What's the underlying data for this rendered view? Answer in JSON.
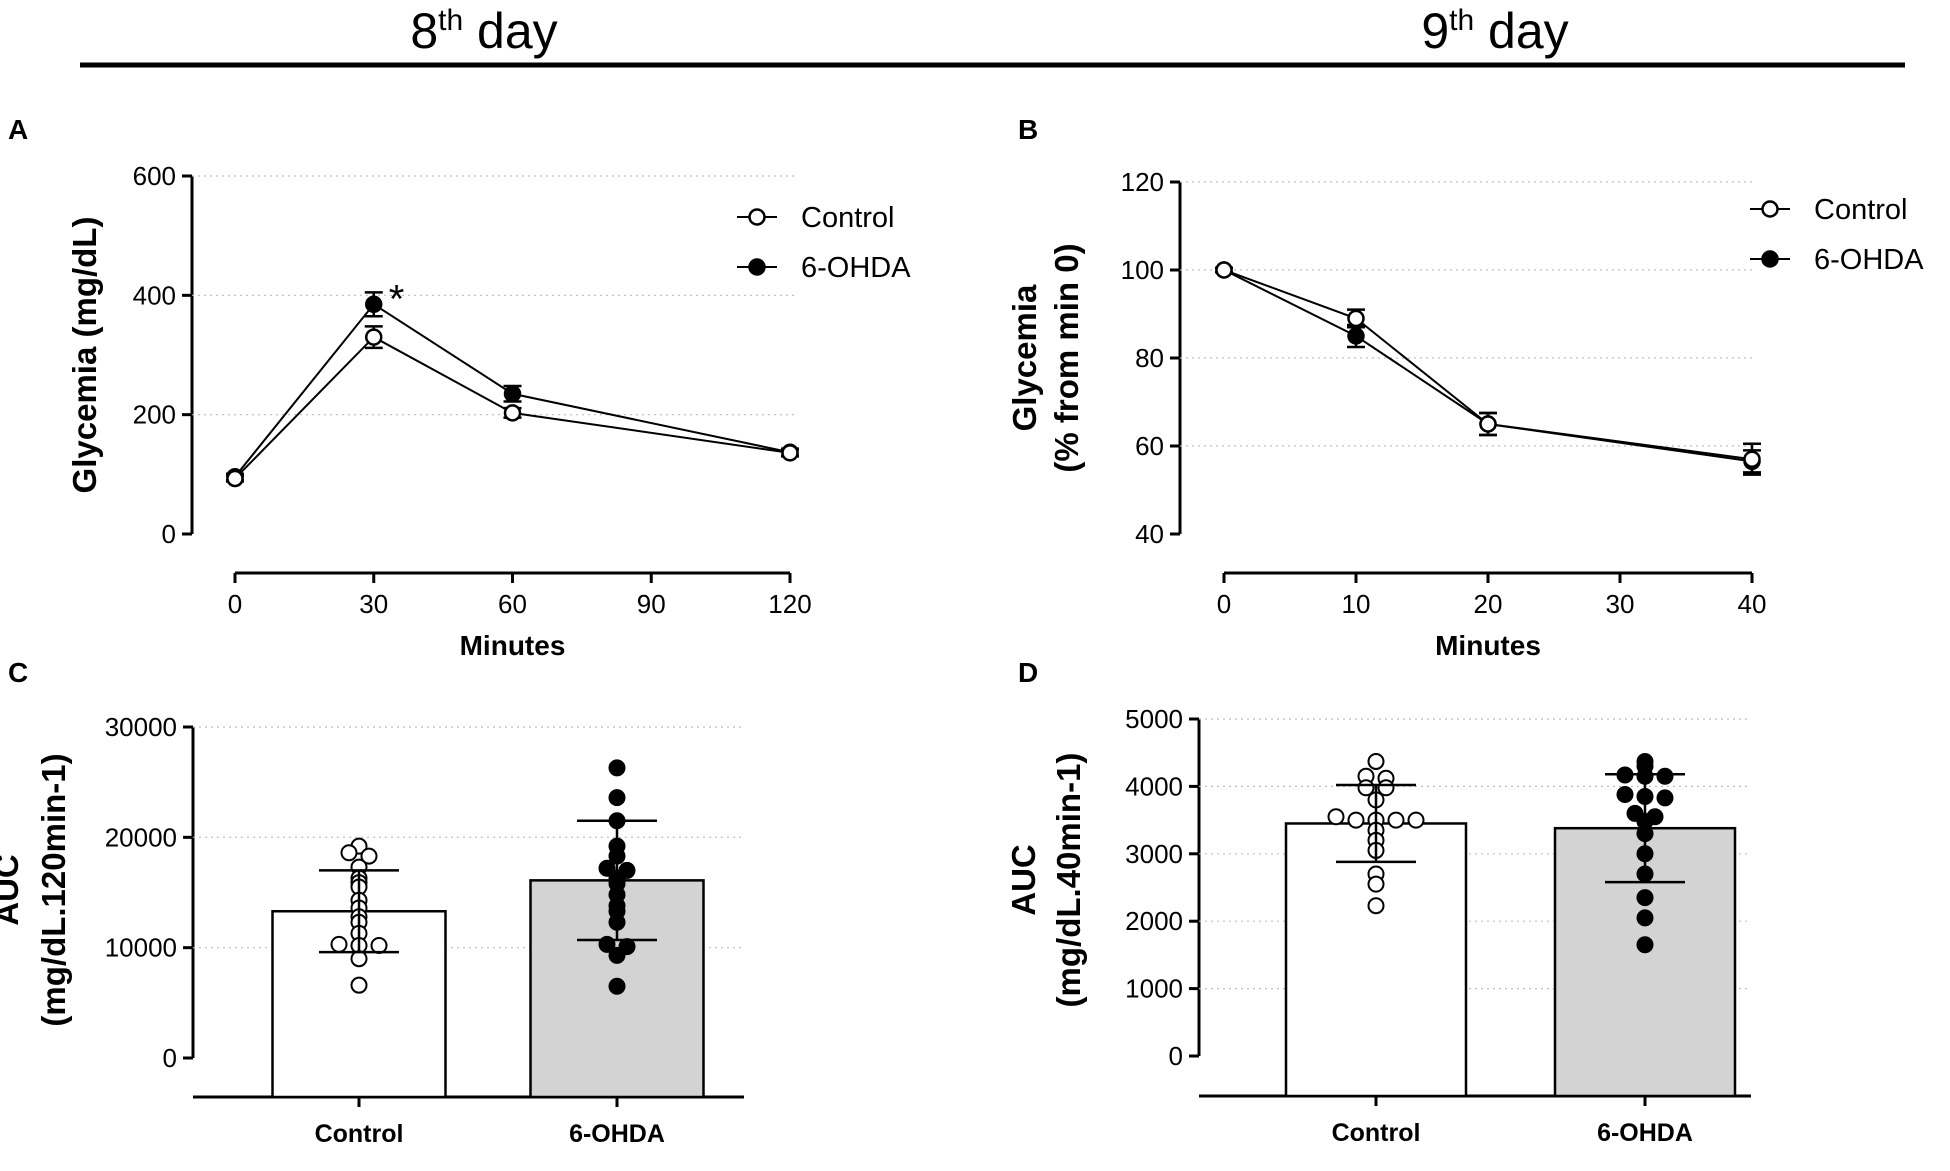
{
  "figure": {
    "header_left": {
      "main": "8",
      "sup": "th",
      "rest": " day"
    },
    "header_right": {
      "main": "9",
      "sup": "th",
      "rest": " day"
    }
  },
  "chart_data": [
    {
      "panel": "A",
      "type": "line",
      "title": "",
      "xlabel": "Minutes",
      "ylabel": "Glycemia (mg/dL)",
      "x": [
        0,
        30,
        60,
        120
      ],
      "xticks": [
        0,
        30,
        60,
        90,
        120
      ],
      "yticks": [
        0,
        200,
        400,
        600
      ],
      "xlim": [
        0,
        120
      ],
      "ylim": [
        0,
        600
      ],
      "grid": true,
      "legend_position": "top-right",
      "series": [
        {
          "name": "Control",
          "marker": "open-circle",
          "values": [
            93,
            330,
            203,
            136
          ],
          "errors": [
            5,
            18,
            8,
            6
          ]
        },
        {
          "name": "6-OHDA",
          "marker": "filled-circle",
          "values": [
            96,
            385,
            235,
            137
          ],
          "errors": [
            5,
            20,
            13,
            6
          ]
        }
      ],
      "annotations": [
        {
          "text": "*",
          "x": 30,
          "series": "6-OHDA"
        }
      ]
    },
    {
      "panel": "B",
      "type": "line",
      "title": "",
      "xlabel": "Minutes",
      "ylabel": [
        "Glycemia",
        "(% from min 0)"
      ],
      "x": [
        0,
        10,
        20,
        40
      ],
      "xticks": [
        0,
        10,
        20,
        30,
        40
      ],
      "yticks": [
        40,
        60,
        80,
        100,
        120
      ],
      "xlim": [
        0,
        40
      ],
      "ylim": [
        40,
        120
      ],
      "grid": true,
      "legend_position": "top-right",
      "series": [
        {
          "name": "Control",
          "marker": "open-circle",
          "values": [
            100,
            89,
            65,
            57
          ],
          "errors": [
            0.5,
            2,
            2.5,
            3.5
          ]
        },
        {
          "name": "6-OHDA",
          "marker": "filled-circle",
          "values": [
            100,
            85,
            65,
            56.5
          ],
          "errors": [
            0.5,
            2.5,
            2.5,
            2.5
          ]
        }
      ]
    },
    {
      "panel": "C",
      "type": "bar",
      "title": "",
      "xlabel": "",
      "ylabel": [
        "AUC",
        "(mg/dL.120min-1)"
      ],
      "categories": [
        "Control",
        "6-OHDA"
      ],
      "values": [
        13300,
        16100
      ],
      "sd": [
        3700,
        5400
      ],
      "yticks": [
        0,
        10000,
        20000,
        30000
      ],
      "ylim": [
        0,
        30000
      ],
      "grid": true,
      "bar_fills": [
        "#ffffff",
        "#d3d3d3"
      ],
      "points": [
        [
          19200,
          18600,
          18300,
          17300,
          16300,
          15900,
          15500,
          14300,
          13600,
          12800,
          12300,
          11300,
          10300,
          10200,
          10200,
          9000,
          6600
        ],
        [
          26300,
          23600,
          21500,
          19200,
          18300,
          17200,
          17000,
          16300,
          15800,
          14800,
          13800,
          13300,
          12300,
          10300,
          10100,
          9300,
          6500
        ]
      ]
    },
    {
      "panel": "D",
      "type": "bar",
      "title": "",
      "xlabel": "",
      "ylabel": [
        "AUC",
        "(mg/dL.40min-1)"
      ],
      "categories": [
        "Control",
        "6-OHDA"
      ],
      "values": [
        3450,
        3380
      ],
      "sd": [
        570,
        800
      ],
      "yticks": [
        0,
        1000,
        2000,
        3000,
        4000,
        5000
      ],
      "ylim": [
        0,
        5000
      ],
      "grid": true,
      "bar_fills": [
        "#ffffff",
        "#d3d3d3"
      ],
      "points": [
        [
          4370,
          4150,
          4120,
          3980,
          3980,
          3800,
          3550,
          3500,
          3500,
          3500,
          3500,
          3350,
          3200,
          3050,
          2700,
          2550,
          2230
        ],
        [
          4370,
          4300,
          4170,
          4150,
          4150,
          3880,
          3850,
          3830,
          3600,
          3550,
          3480,
          3300,
          3000,
          2700,
          2350,
          2050,
          1650
        ]
      ]
    }
  ]
}
